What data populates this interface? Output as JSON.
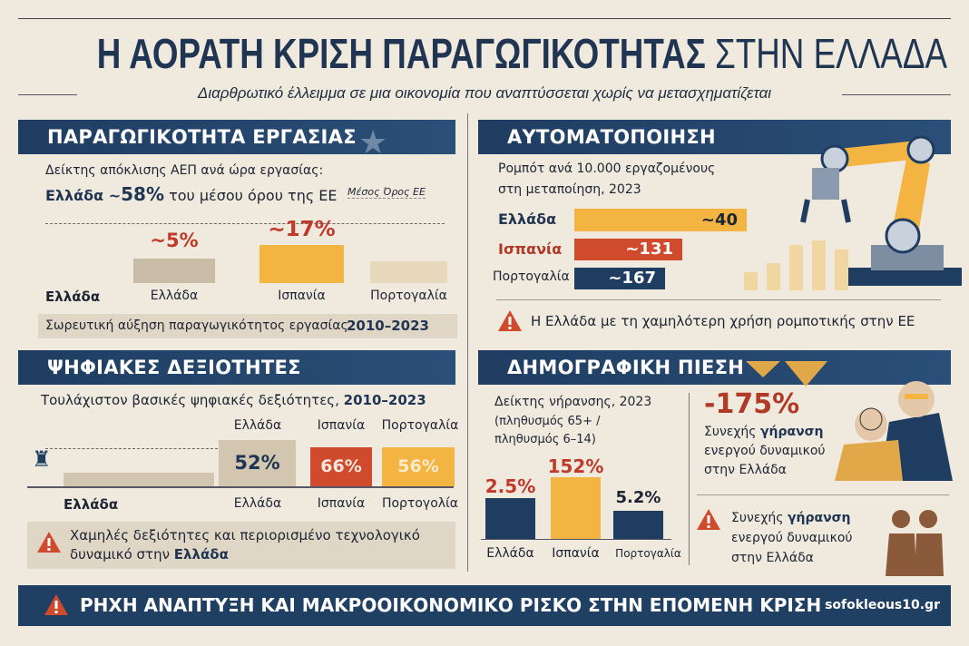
{
  "header": {
    "title_bold": "Η ΑΟΡΑΤΗ ΚΡΙΣΗ ΠΑΡΑΓΩΓΙΚΟΤΗΤΑΣ",
    "title_light": "ΣΤΗΝ ΕΛΛΑΔΑ",
    "subtitle": "Διαρθρωτικό έλλειμμα σε μια οικονομία που αναπτύσσεται χωρίς να μετασχηματίζεται"
  },
  "productivity": {
    "heading": "ΠΑΡΑΓΩΓΙΚΟΤΗΤΑ ΕΡΓΑΣΙΑΣ",
    "line1": "Δείκτης απόκλισης ΑΕΠ ανά ώρα εργασίας:",
    "line2_country": "Ελλάδα ~",
    "line2_value": "58%",
    "line2_rest": "του μέσου όρου της ΕΕ",
    "eu_avg_label": "Μέσος Όρος ΕΕ",
    "left_label": "Ελλάδα",
    "bars": [
      {
        "label": "Ελλάδα",
        "value": "~5%",
        "color": "#c9bca7"
      },
      {
        "label": "Ισπανία",
        "value": "~17%",
        "color": "#f3b441"
      },
      {
        "label": "Πορτογαλία",
        "value": "",
        "color": "#e8d8bc"
      }
    ],
    "footer_text": "Σωρευτική αύξηση παραγωγικότητος εργασίας",
    "footer_years": "2010–2023"
  },
  "automation": {
    "heading": "ΑΥΤΟΜΑΤΟΠΟΙΗΣΗ",
    "line1": "Ρομπότ ανά 10.000 εργαζομένους",
    "line2": "στη μεταποίηση, 2023",
    "bars": [
      {
        "label": "Ελλάδα",
        "value": "~40",
        "color": "#f3b441"
      },
      {
        "label": "Ισπανία",
        "value": "~131",
        "color": "#d04a2e"
      },
      {
        "label": "Πορτογαλία",
        "value": "~167",
        "color": "#1f3d61"
      }
    ],
    "warning": "Η Ελλάδα με τη χαμηλότερη χρήση ρομποτικής στην ΕΕ"
  },
  "digital": {
    "heading": "ΨΗΦΙΑΚΕΣ ΔΕΞΙΟΤΗΤΕΣ",
    "subtitle": "Τουλάχιστον βασικές ψηφιακές δεξιότητες,",
    "years": "2010–2023",
    "left_label": "Ελλάδα",
    "bars": [
      {
        "top": "Ελλάδα",
        "value": "52%",
        "bottom": "Ελλάδα",
        "color": "#d3c6b1"
      },
      {
        "top": "Ισπανία",
        "value": "66%",
        "bottom": "Ισπανία",
        "color": "#d04a2e"
      },
      {
        "top": "Πορτογαλία",
        "value": "56%",
        "bottom": "Πορτογολία",
        "color": "#f3b441"
      }
    ],
    "warning_line1": "Χαμηλές δεξιότητες και περιορισμένο τεχνολογικό",
    "warning_line2": "δυναμικό στην",
    "warning_bold": "Ελλάδα"
  },
  "demographic": {
    "heading": "ΔΗΜΟΓΡΑΦΙΚΗ ΠΙΕΣΗ",
    "line1": "Δείκτης νήρανσης, 2023",
    "line2": "(πληθυσμός 65+ /",
    "line3": "πληθυσμός 6–14)",
    "bars": [
      {
        "label": "Ελλάδα",
        "value": "2.5%",
        "color": "#1f3d61"
      },
      {
        "label": "Ισπανία",
        "value": "152%",
        "color": "#f3b441"
      },
      {
        "label": "Πορτογαλία",
        "value": "5.2%",
        "color": "#1f3d61"
      }
    ],
    "big_value": "-175%",
    "note_a": "Συνεχής",
    "note_b": "γήρανση",
    "note_c": "ενεργού δυναμικού",
    "note_d": "στην Ελλάδα"
  },
  "footer": {
    "text": "ΡΗΧΗ ΑΝΑΠΤΥΞΗ ΚΑΙ ΜΑΚΡΟΟΙΚΟΝΟΜΙΚΟ ΡΙΣΚΟ ΣΤΗΝ ΕΠΟΜΕΝΗ ΚΡΙΣΗ",
    "site": "sofokleous10.gr"
  }
}
